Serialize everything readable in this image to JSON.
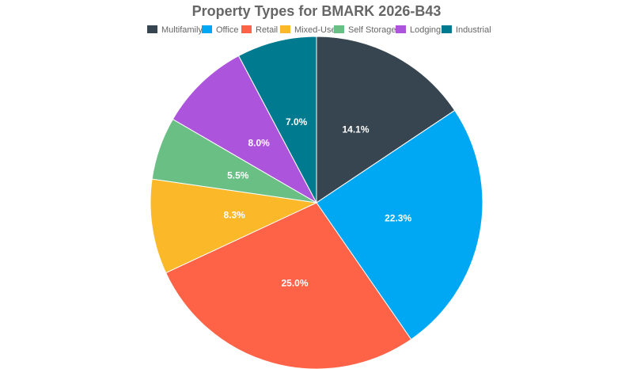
{
  "chart_data": {
    "type": "pie",
    "title": "Property Types for BMARK 2026-B43",
    "legend_position": "top",
    "categories": [
      "Multifamily",
      "Office",
      "Retail",
      "Mixed-Use",
      "Self Storage",
      "Lodging",
      "Industrial"
    ],
    "values": [
      14.1,
      22.3,
      25.0,
      8.3,
      5.5,
      8.0,
      7.0
    ],
    "labels": [
      "14.1%",
      "22.3%",
      "25.0%",
      "8.3%",
      "5.5%",
      "8.0%",
      "7.0%"
    ],
    "colors": [
      "#36454f",
      "#00a8f3",
      "#ff6347",
      "#fbb829",
      "#6abf85",
      "#ad54dd",
      "#007a8f"
    ]
  }
}
